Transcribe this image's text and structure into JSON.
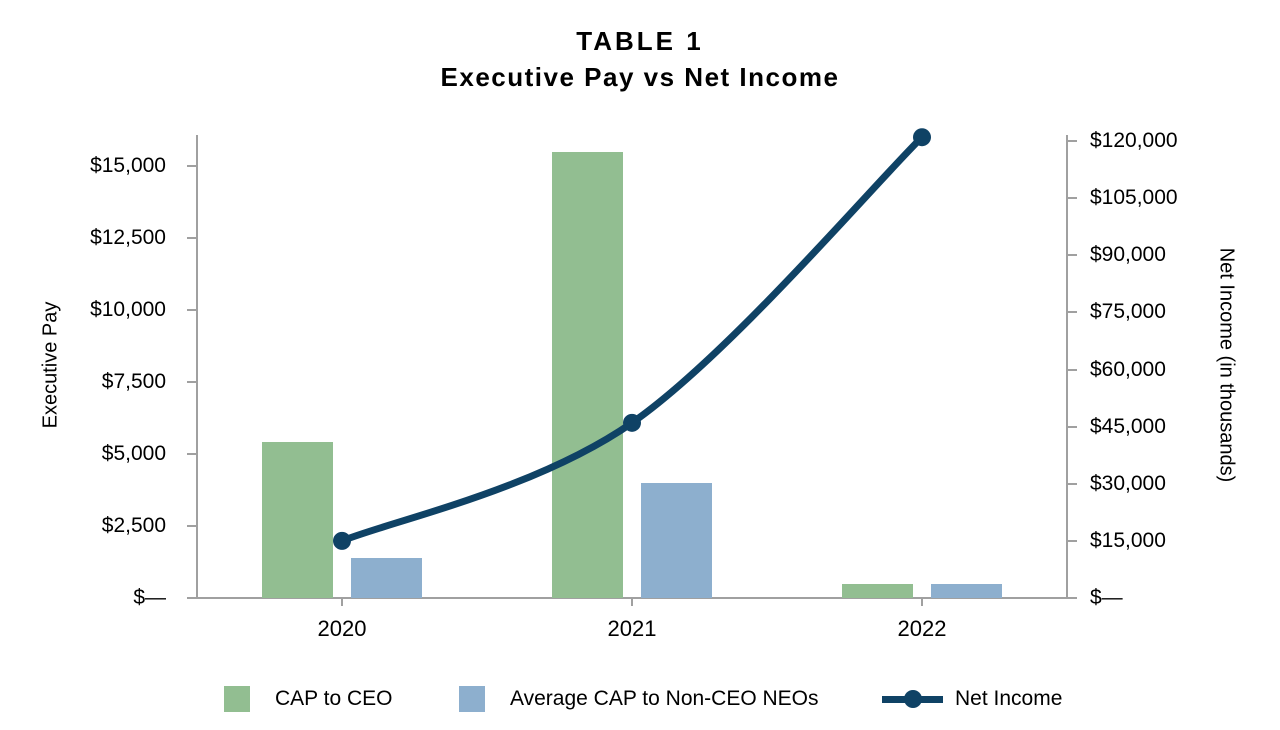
{
  "chart_data": {
    "type": "combo_bar_line",
    "title": "TABLE 1",
    "subtitle": "Executive Pay vs Net Income",
    "categories": [
      "2020",
      "2021",
      "2022"
    ],
    "series": [
      {
        "name": "CAP to CEO",
        "chart": "bar",
        "axis": "left",
        "color": "#92BE91",
        "values": [
          5400,
          15500,
          500
        ]
      },
      {
        "name": "Average CAP to Non-CEO NEOs",
        "chart": "bar",
        "axis": "left",
        "color": "#8DAFCE",
        "values": [
          1400,
          4000,
          500
        ]
      },
      {
        "name": "Net Income",
        "chart": "line",
        "axis": "right",
        "color": "#0F4265",
        "values": [
          15000,
          46000,
          121000
        ]
      }
    ],
    "left_axis": {
      "title": "Executive Pay",
      "min": 0,
      "max": 15000,
      "tick_step": 2500,
      "tick_values": [
        0,
        2500,
        5000,
        7500,
        10000,
        12500,
        15000
      ],
      "tick_labels": [
        "$—",
        "$2,500",
        "$5,000",
        "$7,500",
        "$10,000",
        "$12,500",
        "$15,000"
      ]
    },
    "right_axis": {
      "title": "Net Income  (in thousands)",
      "min": 0,
      "max": 120000,
      "tick_step": 15000,
      "tick_values": [
        0,
        15000,
        30000,
        45000,
        60000,
        75000,
        90000,
        105000,
        120000
      ],
      "tick_labels": [
        "$—",
        "$15,000",
        "$30,000",
        "$45,000",
        "$60,000",
        "$75,000",
        "$90,000",
        "$105,000",
        "$120,000"
      ]
    },
    "legend_position": "bottom",
    "gridlines": false,
    "line_smoothed": true,
    "axis_color": "#a0a0a0",
    "text_color": "#000000",
    "background_color": "#ffffff"
  }
}
